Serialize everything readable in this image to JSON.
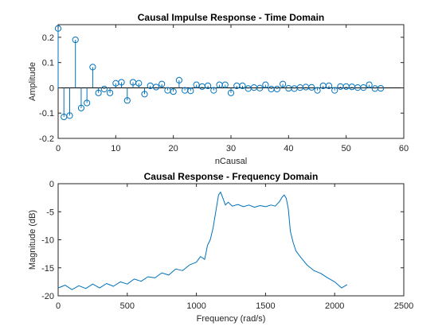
{
  "chart_data": [
    {
      "type": "stem",
      "title": "Causal Impulse Response  - Time Domain",
      "xlabel": "nCausal",
      "ylabel": "Amplitude",
      "xlim": [
        0,
        60
      ],
      "ylim": [
        -0.2,
        0.25
      ],
      "xticks": [
        0,
        10,
        20,
        30,
        40,
        50,
        60
      ],
      "yticks": [
        -0.2,
        -0.1,
        0,
        0.1,
        0.2
      ],
      "xtick_labels": [
        "0",
        "10",
        "20",
        "30",
        "40",
        "50",
        "60"
      ],
      "ytick_labels": [
        "-0.2",
        "-0.1",
        "0",
        "0.1",
        "0.2"
      ],
      "grid": false,
      "color": "#0072bd",
      "x": [
        0,
        1,
        2,
        3,
        4,
        5,
        6,
        7,
        8,
        9,
        10,
        11,
        12,
        13,
        14,
        15,
        16,
        17,
        18,
        19,
        20,
        21,
        22,
        23,
        24,
        25,
        26,
        27,
        28,
        29,
        30,
        31,
        32,
        33,
        34,
        35,
        36,
        37,
        38,
        39,
        40,
        41,
        42,
        43,
        44,
        45,
        46,
        47,
        48,
        49,
        50,
        51,
        52,
        53,
        54,
        55,
        56
      ],
      "y": [
        0.235,
        -0.115,
        -0.11,
        0.19,
        -0.08,
        -0.06,
        0.082,
        -0.02,
        -0.005,
        -0.02,
        0.018,
        0.022,
        -0.05,
        0.022,
        0.018,
        -0.025,
        0.008,
        0.003,
        0.015,
        -0.01,
        -0.015,
        0.03,
        -0.01,
        -0.012,
        0.012,
        0.005,
        0.008,
        -0.01,
        0.012,
        0.012,
        -0.02,
        0.008,
        0.008,
        -0.003,
        0.001,
        -0.001,
        0.012,
        -0.005,
        -0.005,
        0.015,
        -0.002,
        -0.003,
        0.001,
        0.003,
        0.002,
        -0.01,
        0.008,
        0.008,
        -0.01,
        0.005,
        0.005,
        0.004,
        0.001,
        0.001,
        0.012,
        -0.003,
        -0.002
      ]
    },
    {
      "type": "line",
      "title": "Causal Response - Frequency Domain",
      "xlabel": "Frequency (rad/s)",
      "ylabel": "Magnitude (dB)",
      "xlim": [
        0,
        2500
      ],
      "ylim": [
        -20,
        0
      ],
      "xticks": [
        0,
        500,
        1000,
        1500,
        2000,
        2500
      ],
      "yticks": [
        -20,
        -15,
        -10,
        -5,
        0
      ],
      "xtick_labels": [
        "0",
        "500",
        "1000",
        "1500",
        "2000",
        "2500"
      ],
      "ytick_labels": [
        "-20",
        "-15",
        "-10",
        "-5",
        "0"
      ],
      "grid": false,
      "color": "#0072bd",
      "x": [
        0,
        50,
        100,
        150,
        200,
        250,
        300,
        350,
        400,
        450,
        500,
        550,
        600,
        650,
        700,
        750,
        800,
        850,
        900,
        950,
        1000,
        1030,
        1060,
        1080,
        1100,
        1120,
        1140,
        1160,
        1175,
        1190,
        1210,
        1230,
        1260,
        1300,
        1340,
        1380,
        1420,
        1460,
        1500,
        1540,
        1570,
        1600,
        1620,
        1635,
        1650,
        1665,
        1680,
        1700,
        1720,
        1750,
        1800,
        1850,
        1900,
        1950,
        2000,
        2050,
        2090
      ],
      "y": [
        -18.6,
        -18.1,
        -18.9,
        -18.2,
        -18.7,
        -17.9,
        -18.6,
        -17.8,
        -18.3,
        -17.5,
        -17.9,
        -17.0,
        -17.4,
        -16.6,
        -16.8,
        -15.9,
        -16.3,
        -15.2,
        -15.5,
        -14.5,
        -14.0,
        -13.0,
        -13.5,
        -11.0,
        -10.0,
        -8.0,
        -5.0,
        -2.0,
        -1.5,
        -2.5,
        -3.8,
        -3.3,
        -4.0,
        -3.7,
        -4.1,
        -3.8,
        -4.2,
        -3.9,
        -4.1,
        -3.8,
        -4.0,
        -3.2,
        -2.4,
        -2.0,
        -2.6,
        -4.5,
        -8.5,
        -10.5,
        -12.0,
        -13.0,
        -14.5,
        -15.5,
        -16.0,
        -16.8,
        -17.5,
        -18.6,
        -18.0
      ]
    }
  ]
}
